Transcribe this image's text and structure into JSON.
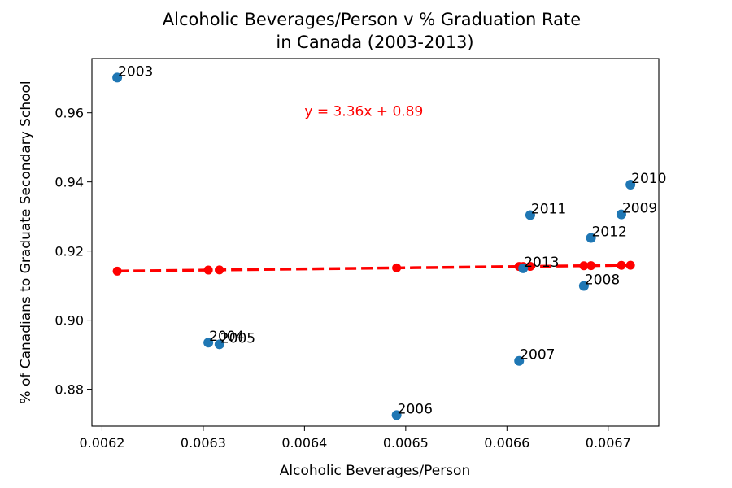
{
  "chart_data": {
    "type": "scatter",
    "title_lines": [
      "Alcoholic Beverages/Person v % Graduation Rate",
      "in Canada (2003-2013)"
    ],
    "xlabel": "Alcoholic Beverages/Person",
    "ylabel": "% of Canadians to Graduate Secondary School",
    "xlim": [
      0.00619,
      0.00675
    ],
    "ylim": [
      0.8693,
      0.9757
    ],
    "xticks": [
      0.0062,
      0.0063,
      0.0064,
      0.0065,
      0.0066,
      0.0067
    ],
    "xtick_labels": [
      "0.0062",
      "0.0063",
      "0.0064",
      "0.0065",
      "0.0066",
      "0.0067"
    ],
    "yticks": [
      0.88,
      0.9,
      0.92,
      0.94,
      0.96
    ],
    "ytick_labels": [
      "0.88",
      "0.90",
      "0.92",
      "0.94",
      "0.96"
    ],
    "grid": false,
    "series": [
      {
        "marker_color": "#1f77b4",
        "points": [
          {
            "label": "2003",
            "x": 0.006215,
            "y": 0.9702
          },
          {
            "label": "2004",
            "x": 0.006305,
            "y": 0.8935
          },
          {
            "label": "2005",
            "x": 0.006316,
            "y": 0.893
          },
          {
            "label": "2006",
            "x": 0.006491,
            "y": 0.8725
          },
          {
            "label": "2007",
            "x": 0.006612,
            "y": 0.8882
          },
          {
            "label": "2008",
            "x": 0.006676,
            "y": 0.9099
          },
          {
            "label": "2009",
            "x": 0.006713,
            "y": 0.9306
          },
          {
            "label": "2010",
            "x": 0.006722,
            "y": 0.9392
          },
          {
            "label": "2011",
            "x": 0.006623,
            "y": 0.9304
          },
          {
            "label": "2012",
            "x": 0.006683,
            "y": 0.9238
          },
          {
            "label": "2013",
            "x": 0.006616,
            "y": 0.915
          }
        ]
      },
      {
        "type": "line",
        "line_color": "#ff0000",
        "line_style": "dashed",
        "marker_color": "#ff0000",
        "slope": 3.36,
        "intercept": 0.8933,
        "x": [
          0.006215,
          0.006305,
          0.006316,
          0.006491,
          0.006612,
          0.006616,
          0.006623,
          0.006676,
          0.006683,
          0.006713,
          0.006722
        ]
      }
    ],
    "annotation": {
      "text": "y = 3.36x + 0.89",
      "x": 0.0064,
      "y": 0.9605,
      "color": "#ff0000"
    }
  }
}
